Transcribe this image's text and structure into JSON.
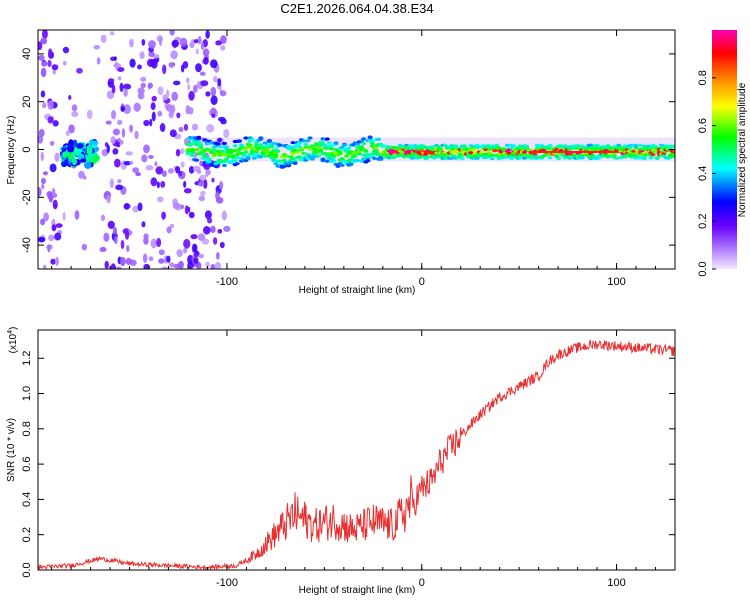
{
  "title": "C2E1.2026.064.04.38.E34",
  "chart_data": [
    {
      "type": "heatmap",
      "name": "spectrogram",
      "xlabel": "Height of straight line (km)",
      "ylabel": "Frequency (Hz)",
      "xlim": [
        -197,
        130
      ],
      "ylim": [
        -50,
        50
      ],
      "x_ticks": [
        -100,
        0,
        100
      ],
      "y_ticks": [
        -40,
        -20,
        0,
        20,
        40
      ],
      "colorbar": {
        "label": "Normalized spectral amplitude",
        "range": [
          0,
          1
        ],
        "ticks": [
          "0.0",
          "0.2",
          "0.4",
          "0.6",
          "0.8"
        ],
        "colors": [
          "#f2e6ff",
          "#7f00ff",
          "#0000ff",
          "#00ffff",
          "#00ff00",
          "#ffff00",
          "#ff7f00",
          "#ff0000",
          "#ff00cc"
        ]
      },
      "description_regions": [
        {
          "x_from": -197,
          "x_to": -100,
          "freq_spread": 50,
          "amplitude": 0.15
        },
        {
          "x_from": -120,
          "x_to": -20,
          "freq_spread": 6,
          "amplitude": 0.45
        },
        {
          "x_from": -20,
          "x_to": 130,
          "freq_spread": 3,
          "amplitude": 0.85
        }
      ]
    },
    {
      "type": "line",
      "name": "snr",
      "xlabel": "Height of straight line (km)",
      "ylabel": "SNR (10 * v/v)",
      "y_scale_label": "(x10",
      "y_scale_exp": "4",
      "xlim": [
        -197,
        130
      ],
      "ylim": [
        0,
        1.36
      ],
      "x_ticks": [
        -100,
        0,
        100
      ],
      "y_ticks": [
        "0.0",
        "0.2",
        "0.4",
        "0.6",
        "0.8",
        "1.0",
        "1.2"
      ],
      "series": [
        {
          "name": "SNR",
          "color": "#e83030",
          "x": [
            -197,
            -180,
            -165,
            -150,
            -130,
            -110,
            -95,
            -85,
            -75,
            -65,
            -55,
            -45,
            -35,
            -25,
            -15,
            -8,
            0,
            5,
            10,
            20,
            30,
            40,
            50,
            55,
            60,
            65,
            70,
            80,
            90,
            100,
            110,
            120,
            130
          ],
          "y": [
            0.01,
            0.02,
            0.06,
            0.03,
            0.02,
            0.01,
            0.02,
            0.08,
            0.18,
            0.28,
            0.22,
            0.25,
            0.2,
            0.24,
            0.22,
            0.3,
            0.46,
            0.5,
            0.62,
            0.76,
            0.88,
            0.98,
            1.04,
            1.07,
            1.1,
            1.18,
            1.22,
            1.26,
            1.28,
            1.27,
            1.26,
            1.25,
            1.24
          ]
        }
      ]
    }
  ]
}
